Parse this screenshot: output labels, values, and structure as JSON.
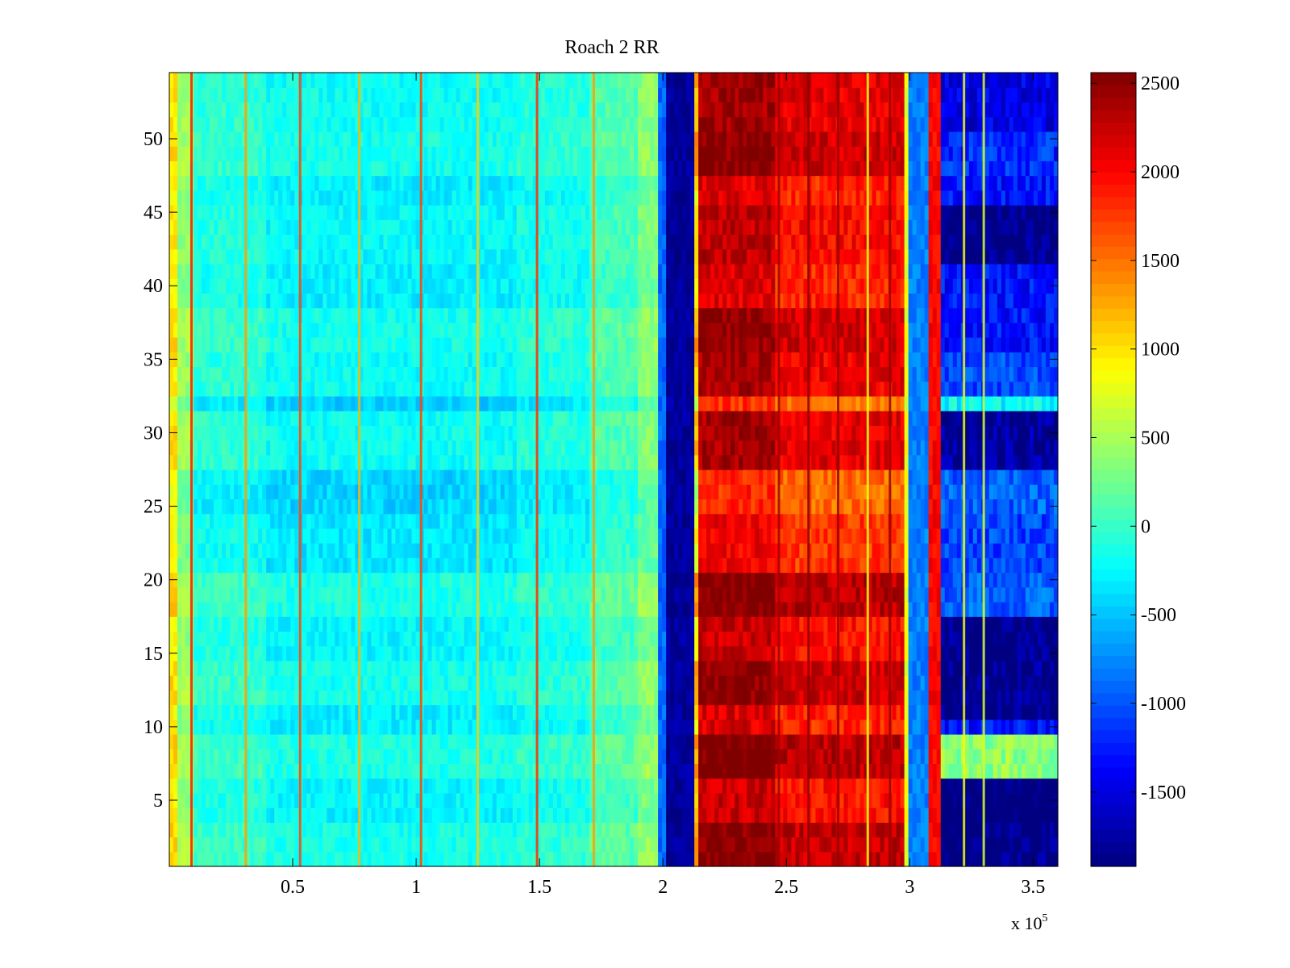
{
  "chart_data": {
    "type": "heatmap",
    "title": "Roach 2 RR",
    "xlabel": "",
    "ylabel": "",
    "x_multiplier_label": "x 10",
    "x_multiplier_exponent": "5",
    "xlim": [
      0,
      3.6
    ],
    "ylim": [
      0.5,
      54.5
    ],
    "x_ticks": [
      0.5,
      1,
      1.5,
      2,
      2.5,
      3,
      3.5
    ],
    "x_tick_labels": [
      "0.5",
      "1",
      "1.5",
      "2",
      "2.5",
      "3",
      "3.5"
    ],
    "y_ticks": [
      5,
      10,
      15,
      20,
      25,
      30,
      35,
      40,
      45,
      50
    ],
    "y_tick_labels": [
      "5",
      "10",
      "15",
      "20",
      "25",
      "30",
      "35",
      "40",
      "45",
      "50"
    ],
    "rows": 54,
    "colorbar": {
      "colormap": "jet",
      "clim": [
        -1920,
        2560
      ],
      "ticks": [
        -1500,
        -1000,
        -500,
        0,
        500,
        1000,
        1500,
        2000,
        2500
      ],
      "tick_labels": [
        "-1500",
        "-1000",
        "-500",
        "0",
        "500",
        "1000",
        "1500",
        "2000",
        "2500"
      ]
    },
    "column_segments": [
      {
        "x0": 0.0,
        "x1": 0.04,
        "value": 900
      },
      {
        "x0": 0.04,
        "x1": 0.1,
        "value": 350
      },
      {
        "x0": 0.1,
        "x1": 0.4,
        "value": -150
      },
      {
        "x0": 0.4,
        "x1": 1.4,
        "value": -300
      },
      {
        "x0": 1.4,
        "x1": 1.7,
        "value": -200
      },
      {
        "x0": 1.7,
        "x1": 1.9,
        "value": 0
      },
      {
        "x0": 1.9,
        "x1": 1.98,
        "value": 250
      },
      {
        "x0": 1.98,
        "x1": 2.01,
        "value": -900
      },
      {
        "x0": 2.01,
        "x1": 2.12,
        "value": -1800
      },
      {
        "x0": 2.12,
        "x1": 2.14,
        "value": 900
      },
      {
        "x0": 2.14,
        "x1": 2.46,
        "value": 2150
      },
      {
        "x0": 2.46,
        "x1": 2.98,
        "value": 1850
      },
      {
        "x0": 2.98,
        "x1": 3.0,
        "value": 800
      },
      {
        "x0": 3.0,
        "x1": 3.08,
        "value": -800
      },
      {
        "x0": 3.08,
        "x1": 3.12,
        "value": 2000
      },
      {
        "x0": 3.12,
        "x1": 3.6,
        "value": -1300
      }
    ],
    "vertical_streaks": [
      {
        "x": 0.09,
        "value": 1900
      },
      {
        "x": 0.31,
        "value": 1300
      },
      {
        "x": 0.53,
        "value": 1700
      },
      {
        "x": 0.77,
        "value": 1200
      },
      {
        "x": 1.02,
        "value": 1700
      },
      {
        "x": 1.25,
        "value": 1100
      },
      {
        "x": 1.49,
        "value": 1800
      },
      {
        "x": 1.72,
        "value": 1300
      },
      {
        "x": 2.47,
        "value": 2400
      },
      {
        "x": 2.59,
        "value": 2500
      },
      {
        "x": 2.71,
        "value": 2450
      },
      {
        "x": 2.83,
        "value": 800
      },
      {
        "x": 2.92,
        "value": 2450
      },
      {
        "x": 3.22,
        "value": 800
      },
      {
        "x": 3.3,
        "value": 700
      }
    ],
    "row_bands": [
      {
        "rows": [
          1,
          3
        ],
        "warm": 450,
        "cool": -500
      },
      {
        "rows": [
          4,
          6
        ],
        "warm": 100,
        "cool": -600
      },
      {
        "rows": [
          7,
          9
        ],
        "warm": 500,
        "cool": 1400
      },
      {
        "rows": [
          11,
          11
        ],
        "warm": 0,
        "cool": -500
      },
      {
        "rows": [
          12,
          14
        ],
        "warm": 400,
        "cool": -450
      },
      {
        "rows": [
          15,
          17
        ],
        "warm": 100,
        "cool": -500
      },
      {
        "rows": [
          18,
          20
        ],
        "warm": 500,
        "cool": 300
      },
      {
        "rows": [
          21,
          24
        ],
        "warm": -100,
        "cool": 200
      },
      {
        "rows": [
          25,
          27
        ],
        "warm": -350,
        "cool": 300
      },
      {
        "rows": [
          28,
          31
        ],
        "warm": 300,
        "cool": -400
      },
      {
        "rows": [
          32,
          32
        ],
        "warm": -400,
        "cool": 900
      },
      {
        "rows": [
          33,
          35
        ],
        "warm": 250,
        "cool": 200
      },
      {
        "rows": [
          36,
          38
        ],
        "warm": 400,
        "cool": 0
      },
      {
        "rows": [
          42,
          45
        ],
        "warm": 150,
        "cool": -500
      },
      {
        "rows": [
          48,
          50
        ],
        "warm": 400,
        "cool": 100
      },
      {
        "rows": [
          51,
          54
        ],
        "warm": 300,
        "cool": -150
      }
    ]
  }
}
